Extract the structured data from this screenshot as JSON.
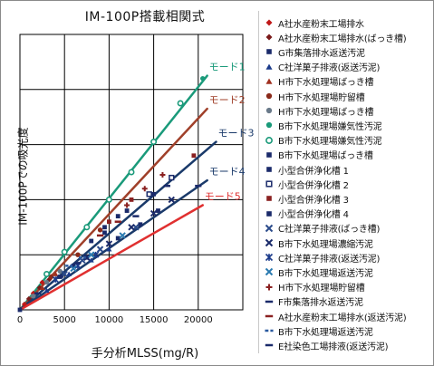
{
  "colors": {
    "mode1": "#1a9a7a",
    "mode2": "#a0402a",
    "mode3": "#1a3a6a",
    "mode4": "#1a3a6a",
    "mode5": "#e03030",
    "grid": "#000000"
  },
  "chart_data": {
    "type": "scatter",
    "title": "IM-100P搭載相関式",
    "xlabel": "手分析MLSS(mg/R)",
    "ylabel": "IM-100Pでの吸光度",
    "xlim": [
      0,
      25000
    ],
    "ylim": [
      0,
      1
    ],
    "xticks": [
      "0",
      "5000",
      "10000",
      "15000",
      "20000",
      "25000"
    ],
    "grid": true,
    "legend_position": "right",
    "lines": [
      {
        "name": "モード1",
        "color": "#1a9a7a",
        "x": [
          0,
          21000
        ],
        "y": [
          0,
          0.85
        ]
      },
      {
        "name": "モード2",
        "color": "#a0402a",
        "x": [
          0,
          21000
        ],
        "y": [
          0,
          0.73
        ]
      },
      {
        "name": "モード3",
        "color": "#1a3a6a",
        "x": [
          0,
          22000
        ],
        "y": [
          0,
          0.61
        ]
      },
      {
        "name": "モード4",
        "color": "#1a3a6a",
        "x": [
          0,
          21000
        ],
        "y": [
          0,
          0.47
        ]
      },
      {
        "name": "モード5",
        "color": "#e03030",
        "x": [
          0,
          20500
        ],
        "y": [
          0,
          0.38
        ]
      }
    ],
    "series": [
      {
        "name": "A社水産粉末工場排水",
        "marker": "diamond",
        "color": "#c01818",
        "x": [
          500,
          1500,
          2500,
          3500
        ],
        "y": [
          0.02,
          0.06,
          0.1,
          0.12
        ]
      },
      {
        "name": "A社水産粉末工場排水(ばっき槽)",
        "marker": "diamond",
        "color": "#7a1a1a",
        "x": [
          1000,
          2200,
          3300
        ],
        "y": [
          0.04,
          0.08,
          0.11
        ]
      },
      {
        "name": "G市集落排水返送汚泥",
        "marker": "square",
        "color": "#1a2a6a",
        "x": [
          4500,
          6000,
          7500
        ],
        "y": [
          0.12,
          0.16,
          0.19
        ]
      },
      {
        "name": "C社洋菓子排液(返送汚泥)",
        "marker": "triangle",
        "color": "#1a3a8a",
        "x": [
          3000,
          5500,
          8000,
          10000
        ],
        "y": [
          0.07,
          0.13,
          0.18,
          0.22
        ]
      },
      {
        "name": "H市下水処理場ばっき槽",
        "marker": "triangle",
        "color": "#a03020",
        "x": [
          2500,
          4000
        ],
        "y": [
          0.08,
          0.13
        ]
      },
      {
        "name": "H市下水処理場貯留槽",
        "marker": "circle",
        "color": "#8a2a1a",
        "x": [
          3500,
          6500,
          9000
        ],
        "y": [
          0.12,
          0.2,
          0.29
        ]
      },
      {
        "name": "H市下水処理場ばっき槽",
        "marker": "circle",
        "color": "#6a7a8a",
        "x": [
          1500,
          3000,
          4500
        ],
        "y": [
          0.05,
          0.1,
          0.14
        ]
      },
      {
        "name": "B市下水処理場嫌気性汚泥",
        "marker": "circle",
        "color": "#1a9a7a",
        "x": [
          20500
        ],
        "y": [
          0.84
        ]
      },
      {
        "name": "B市下水処理場嫌気性汚泥",
        "marker": "circle-open",
        "color": "#1a9a7a",
        "x": [
          3000,
          5000,
          7500,
          10000,
          12500,
          15000,
          18000
        ],
        "y": [
          0.13,
          0.21,
          0.3,
          0.4,
          0.5,
          0.61,
          0.75
        ]
      },
      {
        "name": "B市下水処理場ばっき槽",
        "marker": "square",
        "color": "#1a2a6a",
        "x": [
          11000,
          13500,
          15500
        ],
        "y": [
          0.26,
          0.31,
          0.36
        ]
      },
      {
        "name": "小型合併浄化槽 1",
        "marker": "square",
        "color": "#1a2a6a",
        "x": [
          9500,
          12000,
          15000
        ],
        "y": [
          0.28,
          0.36,
          0.42
        ]
      },
      {
        "name": "小型合併浄化槽 2",
        "marker": "square-open",
        "color": "#1a2a6a",
        "x": [
          14500,
          17000
        ],
        "y": [
          0.42,
          0.48
        ]
      },
      {
        "name": "小型合併浄化槽 3",
        "marker": "square",
        "color": "#8a2020",
        "x": [
          10000,
          12500,
          19500
        ],
        "y": [
          0.32,
          0.4,
          0.56
        ]
      },
      {
        "name": "小型合併浄化槽 4",
        "marker": "square",
        "color": "#1a2a6a",
        "x": [
          8000,
          9500,
          11000
        ],
        "y": [
          0.25,
          0.3,
          0.34
        ]
      },
      {
        "name": "C社洋菓子排液(ばっき槽)",
        "marker": "x",
        "color": "#2a4a8a",
        "x": [
          5000,
          7000,
          9000,
          13000
        ],
        "y": [
          0.13,
          0.18,
          0.22,
          0.3
        ]
      },
      {
        "name": "B市下水処理場濃縮汚泥",
        "marker": "x",
        "color": "#1a2a6a",
        "x": [
          7500,
          10000,
          12500,
          15000,
          17000
        ],
        "y": [
          0.19,
          0.24,
          0.3,
          0.35,
          0.4
        ]
      },
      {
        "name": "C社洋菓子排液(返送汚泥)",
        "marker": "star",
        "color": "#1a3a8a",
        "x": [
          4000,
          6500,
          8500
        ],
        "y": [
          0.11,
          0.16,
          0.2
        ]
      },
      {
        "name": "B市下水処理場返送汚泥",
        "marker": "x",
        "color": "#2a7ab0",
        "x": [
          6000,
          8000,
          11500
        ],
        "y": [
          0.15,
          0.2,
          0.27
        ]
      },
      {
        "name": "H市下水処理場貯留槽",
        "marker": "plus",
        "color": "#8a2020",
        "x": [
          12000,
          14000,
          16000
        ],
        "y": [
          0.38,
          0.44,
          0.49
        ]
      },
      {
        "name": "F市集落排水返送汚泥",
        "marker": "dash",
        "color": "#1a2a6a",
        "x": [
          13000,
          16500,
          20000
        ],
        "y": [
          0.34,
          0.45,
          0.45
        ]
      },
      {
        "name": "A社水産粉末工場排水(返送汚泥)",
        "marker": "dash",
        "color": "#8a2020",
        "x": [
          9000,
          11000
        ],
        "y": [
          0.27,
          0.32
        ]
      },
      {
        "name": "B市下水処理場返送汚泥",
        "marker": "dash-dot",
        "color": "#2a5aa0",
        "x": [
          5500,
          7000
        ],
        "y": [
          0.16,
          0.19
        ]
      },
      {
        "name": "E社染色工場排液(返送汚泥)",
        "marker": "dash",
        "color": "#1a2a6a",
        "x": [
          2000,
          4500,
          6500
        ],
        "y": [
          0.06,
          0.12,
          0.17
        ]
      }
    ]
  }
}
